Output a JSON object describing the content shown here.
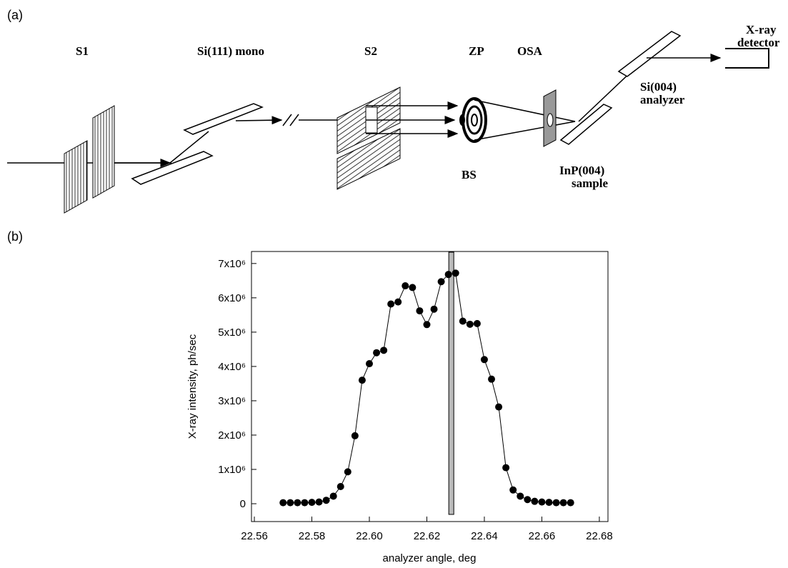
{
  "diagram": {
    "panel_label": "(a)",
    "s1": "S1",
    "mono": "Si(111) mono",
    "s2": "S2",
    "zp": "ZP",
    "osa": "OSA",
    "bs": "BS",
    "detector": [
      "X-ray",
      "detector"
    ],
    "analyzer": [
      "Si(004)",
      "analyzer"
    ],
    "sample": [
      "InP(004)",
      "sample"
    ]
  },
  "chart_data": {
    "type": "line",
    "panel_label": "(b)",
    "x_label": "analyzer angle, deg",
    "y_label": "X-ray intensity, ph/sec",
    "x": [
      22.57,
      22.5725,
      22.575,
      22.5775,
      22.58,
      22.5825,
      22.585,
      22.5875,
      22.59,
      22.5925,
      22.595,
      22.5975,
      22.6,
      22.6025,
      22.605,
      22.6075,
      22.61,
      22.6125,
      22.615,
      22.6175,
      22.62,
      22.6225,
      22.625,
      22.6275,
      22.63,
      22.6325,
      22.635,
      22.6375,
      22.64,
      22.6425,
      22.645,
      22.6475,
      22.65,
      22.6525,
      22.655,
      22.6575,
      22.66,
      22.6625,
      22.665,
      22.6675,
      22.67
    ],
    "series": [
      {
        "color": "#000000",
        "values": [
          30000,
          30000,
          30000,
          30000,
          40000,
          50000,
          100000,
          220000,
          500000,
          930000,
          1980000,
          3600000,
          4080000,
          4400000,
          4470000,
          5820000,
          5880000,
          6350000,
          6300000,
          5620000,
          5220000,
          5670000,
          6470000,
          6680000,
          6720000,
          5320000,
          5230000,
          5250000,
          4200000,
          3630000,
          2820000,
          1050000,
          400000,
          220000,
          120000,
          70000,
          50000,
          40000,
          30000,
          30000,
          30000
        ]
      }
    ],
    "marker_bar_x": 22.6285,
    "xlim": [
      22.559,
      22.683
    ],
    "ylim": [
      -520000,
      7350000
    ],
    "xticks": [
      22.56,
      22.58,
      {
        "value": 22.6,
        "label": "22.60"
      },
      22.62,
      22.64,
      22.66,
      22.68
    ],
    "yticks": [
      {
        "value": 0,
        "label": "0"
      },
      {
        "value": 1000000,
        "label": "1x10⁶"
      },
      {
        "value": 2000000,
        "label": "2x10⁶"
      },
      {
        "value": 3000000,
        "label": "3x10⁶"
      },
      {
        "value": 4000000,
        "label": "4x10⁶"
      },
      {
        "value": 5000000,
        "label": "5x10⁶"
      },
      {
        "value": 6000000,
        "label": "6x10⁶"
      },
      {
        "value": 7000000,
        "label": "7x10⁶"
      }
    ]
  }
}
